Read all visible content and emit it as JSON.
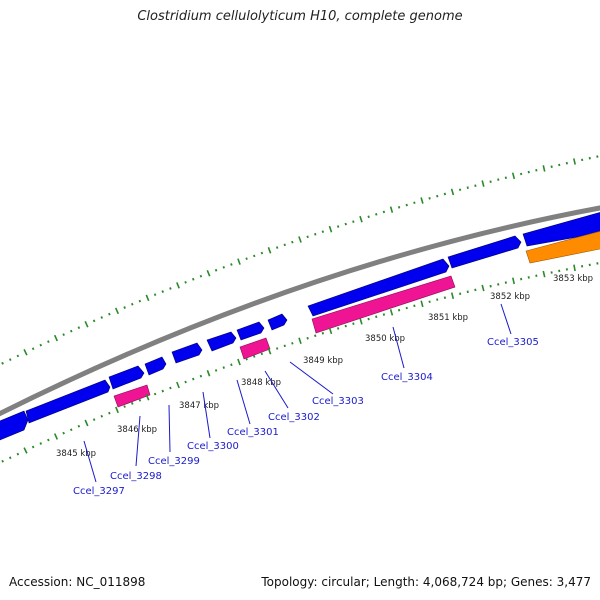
{
  "title": "Clostridium cellulolyticum H10, complete genome",
  "footer": {
    "accession": "Accession: NC_011898",
    "summary": "Topology: circular; Length: 4,068,724 bp; Genes: 3,477"
  },
  "colors": {
    "backbone": "#808080",
    "forward_cds": "#0000ee",
    "reverse_cds": "#ee1493",
    "rna": "#ff8c00",
    "ticks": "#2a8a2a",
    "gene_label": "#1a1acc"
  },
  "kbp_labels": [
    "3845 kbp",
    "3846 kbp",
    "3847 kbp",
    "3848 kbp",
    "3849 kbp",
    "3850 kbp",
    "3851 kbp",
    "3852 kbp",
    "3853 kbp"
  ],
  "gene_labels": [
    "Ccel_3297",
    "Ccel_3298",
    "Ccel_3299",
    "Ccel_3300",
    "Ccel_3301",
    "Ccel_3302",
    "Ccel_3303",
    "Ccel_3304",
    "Ccel_3305"
  ]
}
